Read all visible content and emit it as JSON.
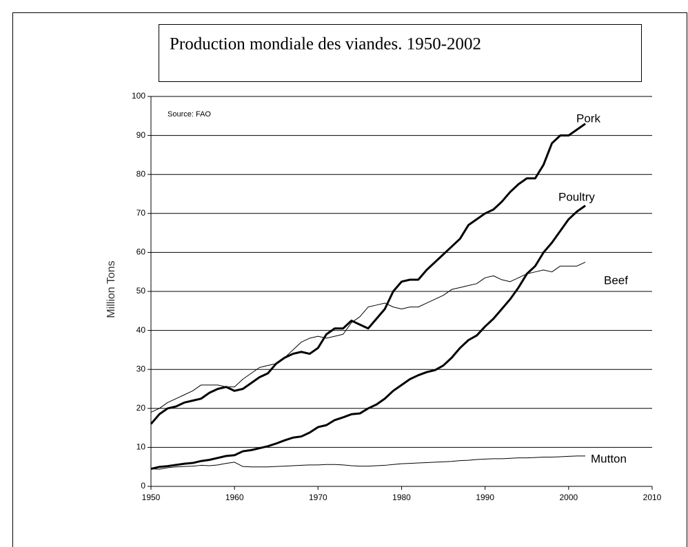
{
  "chart_data": {
    "type": "line",
    "title": "Production mondiale des viandes. 1950-2002",
    "annotation": "Source: FAO",
    "y_label": "Million Tons",
    "x": [
      1950,
      1951,
      1952,
      1953,
      1954,
      1955,
      1956,
      1957,
      1958,
      1959,
      1960,
      1961,
      1962,
      1963,
      1964,
      1965,
      1966,
      1967,
      1968,
      1969,
      1970,
      1971,
      1972,
      1973,
      1974,
      1975,
      1976,
      1977,
      1978,
      1979,
      1980,
      1981,
      1982,
      1983,
      1984,
      1985,
      1986,
      1987,
      1988,
      1989,
      1990,
      1991,
      1992,
      1993,
      1994,
      1995,
      1996,
      1997,
      1998,
      1999,
      2000,
      2001,
      2002
    ],
    "series": [
      {
        "name": "Pork",
        "color": "#000000",
        "linewidth": 3,
        "values": [
          16,
          18.5,
          20,
          20.5,
          21.5,
          22,
          22.5,
          24,
          25,
          25.5,
          24.5,
          25,
          26.5,
          28,
          29,
          31.5,
          33,
          34,
          34.5,
          34,
          35.5,
          39,
          40.5,
          40.5,
          42.5,
          41.5,
          40.5,
          43,
          45.5,
          50,
          52.5,
          53,
          53,
          55.5,
          57.5,
          59.5,
          61.5,
          63.5,
          67,
          68.5,
          70,
          71,
          73,
          75.5,
          77.5,
          79,
          79,
          82.5,
          88,
          90,
          90,
          91.5,
          93
        ]
      },
      {
        "name": "Poultry",
        "color": "#000000",
        "linewidth": 3,
        "values": [
          4.5,
          5,
          5.2,
          5.5,
          5.8,
          6,
          6.5,
          6.8,
          7.3,
          7.8,
          8,
          9,
          9.3,
          9.8,
          10.3,
          11,
          11.8,
          12.5,
          12.8,
          13.8,
          15.2,
          15.7,
          17,
          17.7,
          18.5,
          18.7,
          20,
          21,
          22.5,
          24.5,
          26,
          27.5,
          28.5,
          29.3,
          29.8,
          31,
          33,
          35.5,
          37.5,
          38.7,
          41,
          43,
          45.5,
          48,
          51,
          54.5,
          56.5,
          60,
          62.5,
          65.5,
          68.5,
          70.5,
          72
        ]
      },
      {
        "name": "Beef",
        "color": "#000000",
        "linewidth": 1,
        "values": [
          19,
          20,
          21.5,
          22.5,
          23.5,
          24.5,
          26,
          26,
          26,
          25.5,
          25.5,
          27.5,
          29,
          30.5,
          31,
          31.5,
          33,
          35,
          37,
          38,
          38.5,
          38,
          38.5,
          39,
          42,
          43.5,
          46,
          46.5,
          47,
          46,
          45.5,
          46,
          46,
          47,
          48,
          49,
          50.5,
          51,
          51.5,
          52,
          53.5,
          54,
          53,
          52.5,
          53.5,
          54.5,
          55,
          55.5,
          55,
          56.5,
          56.5,
          56.5,
          57.5
        ]
      },
      {
        "name": "Mutton",
        "color": "#000000",
        "linewidth": 1,
        "values": [
          4.5,
          4.4,
          4.8,
          5,
          5.1,
          5.2,
          5.4,
          5.3,
          5.5,
          5.9,
          6.2,
          5.1,
          5,
          5,
          5,
          5.1,
          5.2,
          5.3,
          5.4,
          5.5,
          5.5,
          5.6,
          5.6,
          5.5,
          5.3,
          5.2,
          5.2,
          5.3,
          5.4,
          5.6,
          5.8,
          5.9,
          6,
          6.1,
          6.2,
          6.3,
          6.4,
          6.6,
          6.7,
          6.9,
          7,
          7.1,
          7.1,
          7.2,
          7.3,
          7.3,
          7.4,
          7.5,
          7.5,
          7.6,
          7.7,
          7.8,
          7.8
        ]
      }
    ],
    "xlim": [
      1950,
      2010
    ],
    "xticks": [
      1950,
      1960,
      1970,
      1980,
      1990,
      2000,
      2010
    ],
    "ylim": [
      0,
      100
    ],
    "yticks": [
      0,
      10,
      20,
      30,
      40,
      50,
      60,
      70,
      80,
      90,
      100
    ],
    "grid": true
  }
}
